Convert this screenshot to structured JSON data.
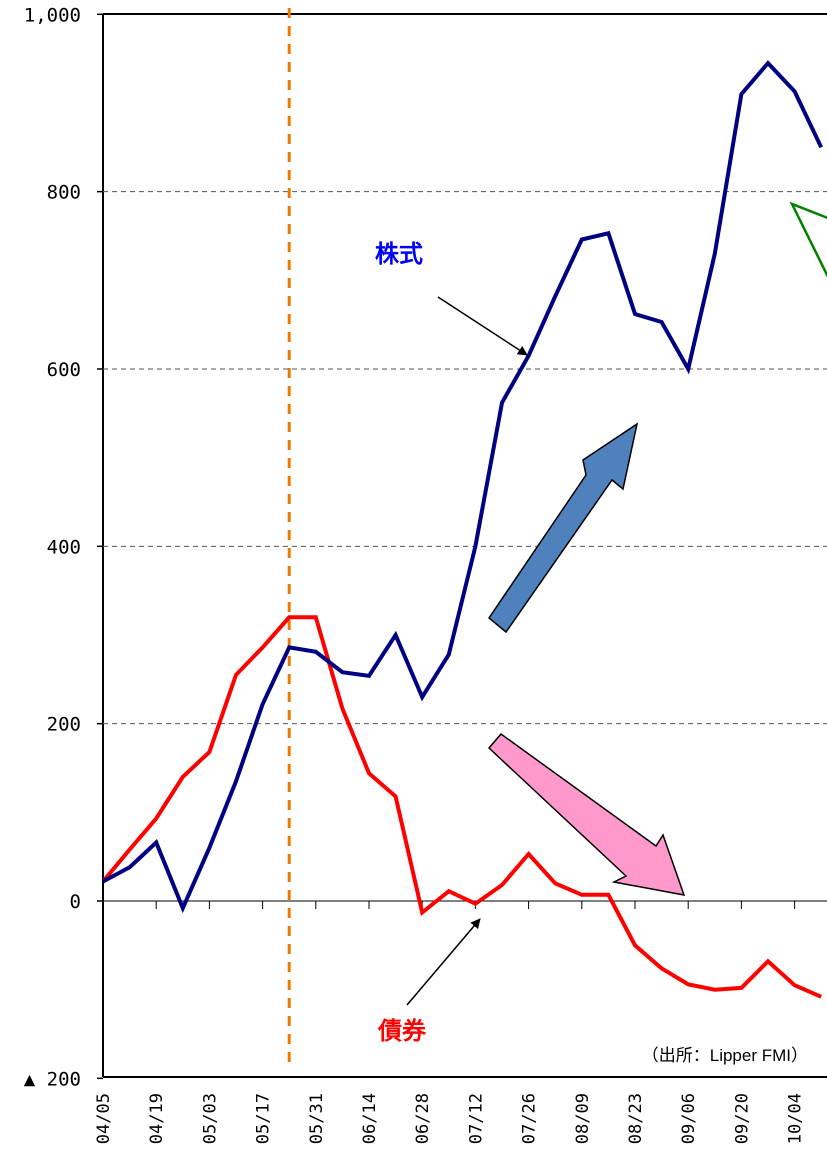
{
  "chart_data": {
    "type": "line",
    "categories": [
      "04/05",
      "04/12",
      "04/19",
      "04/26",
      "05/03",
      "05/10",
      "05/17",
      "05/24",
      "05/31",
      "06/07",
      "06/14",
      "06/21",
      "06/28",
      "07/05",
      "07/12",
      "07/19",
      "07/26",
      "08/02",
      "08/09",
      "08/16",
      "08/23",
      "08/30",
      "09/06",
      "09/13",
      "09/20",
      "09/27",
      "10/04",
      "10/11"
    ],
    "tick_labels": [
      "04/05",
      "04/19",
      "05/03",
      "05/17",
      "05/31",
      "06/14",
      "06/28",
      "07/12",
      "07/26",
      "08/09",
      "08/23",
      "09/06",
      "09/20",
      "10/04"
    ],
    "series": [
      {
        "name": "株式",
        "color": "#000080",
        "values": [
          22,
          38,
          66,
          -8,
          60,
          135,
          222,
          286,
          281,
          258,
          254,
          300,
          230,
          278,
          400,
          562,
          615,
          682,
          746,
          753,
          662,
          653,
          600,
          730,
          910,
          945,
          913,
          850
        ]
      },
      {
        "name": "債券",
        "color": "#ff0000",
        "values": [
          22,
          58,
          93,
          140,
          168,
          255,
          286,
          320,
          320,
          217,
          144,
          118,
          -13,
          11,
          -3,
          18,
          53,
          20,
          7,
          7,
          -50,
          -76,
          -94,
          -100,
          -98,
          -68,
          -95,
          -108
        ]
      }
    ],
    "ylim": [
      -200,
      1000
    ],
    "y_ticks": [
      1000,
      800,
      600,
      400,
      200,
      0,
      -200
    ],
    "y_tick_labels": [
      "1,000",
      "800",
      "600",
      "400",
      "200",
      "0",
      "▲ 200"
    ],
    "grid": "horizontal dashed",
    "vline_category": "05/24",
    "vline_color": "#ee7700",
    "source_note": "（出所：Lipper FMI）"
  }
}
